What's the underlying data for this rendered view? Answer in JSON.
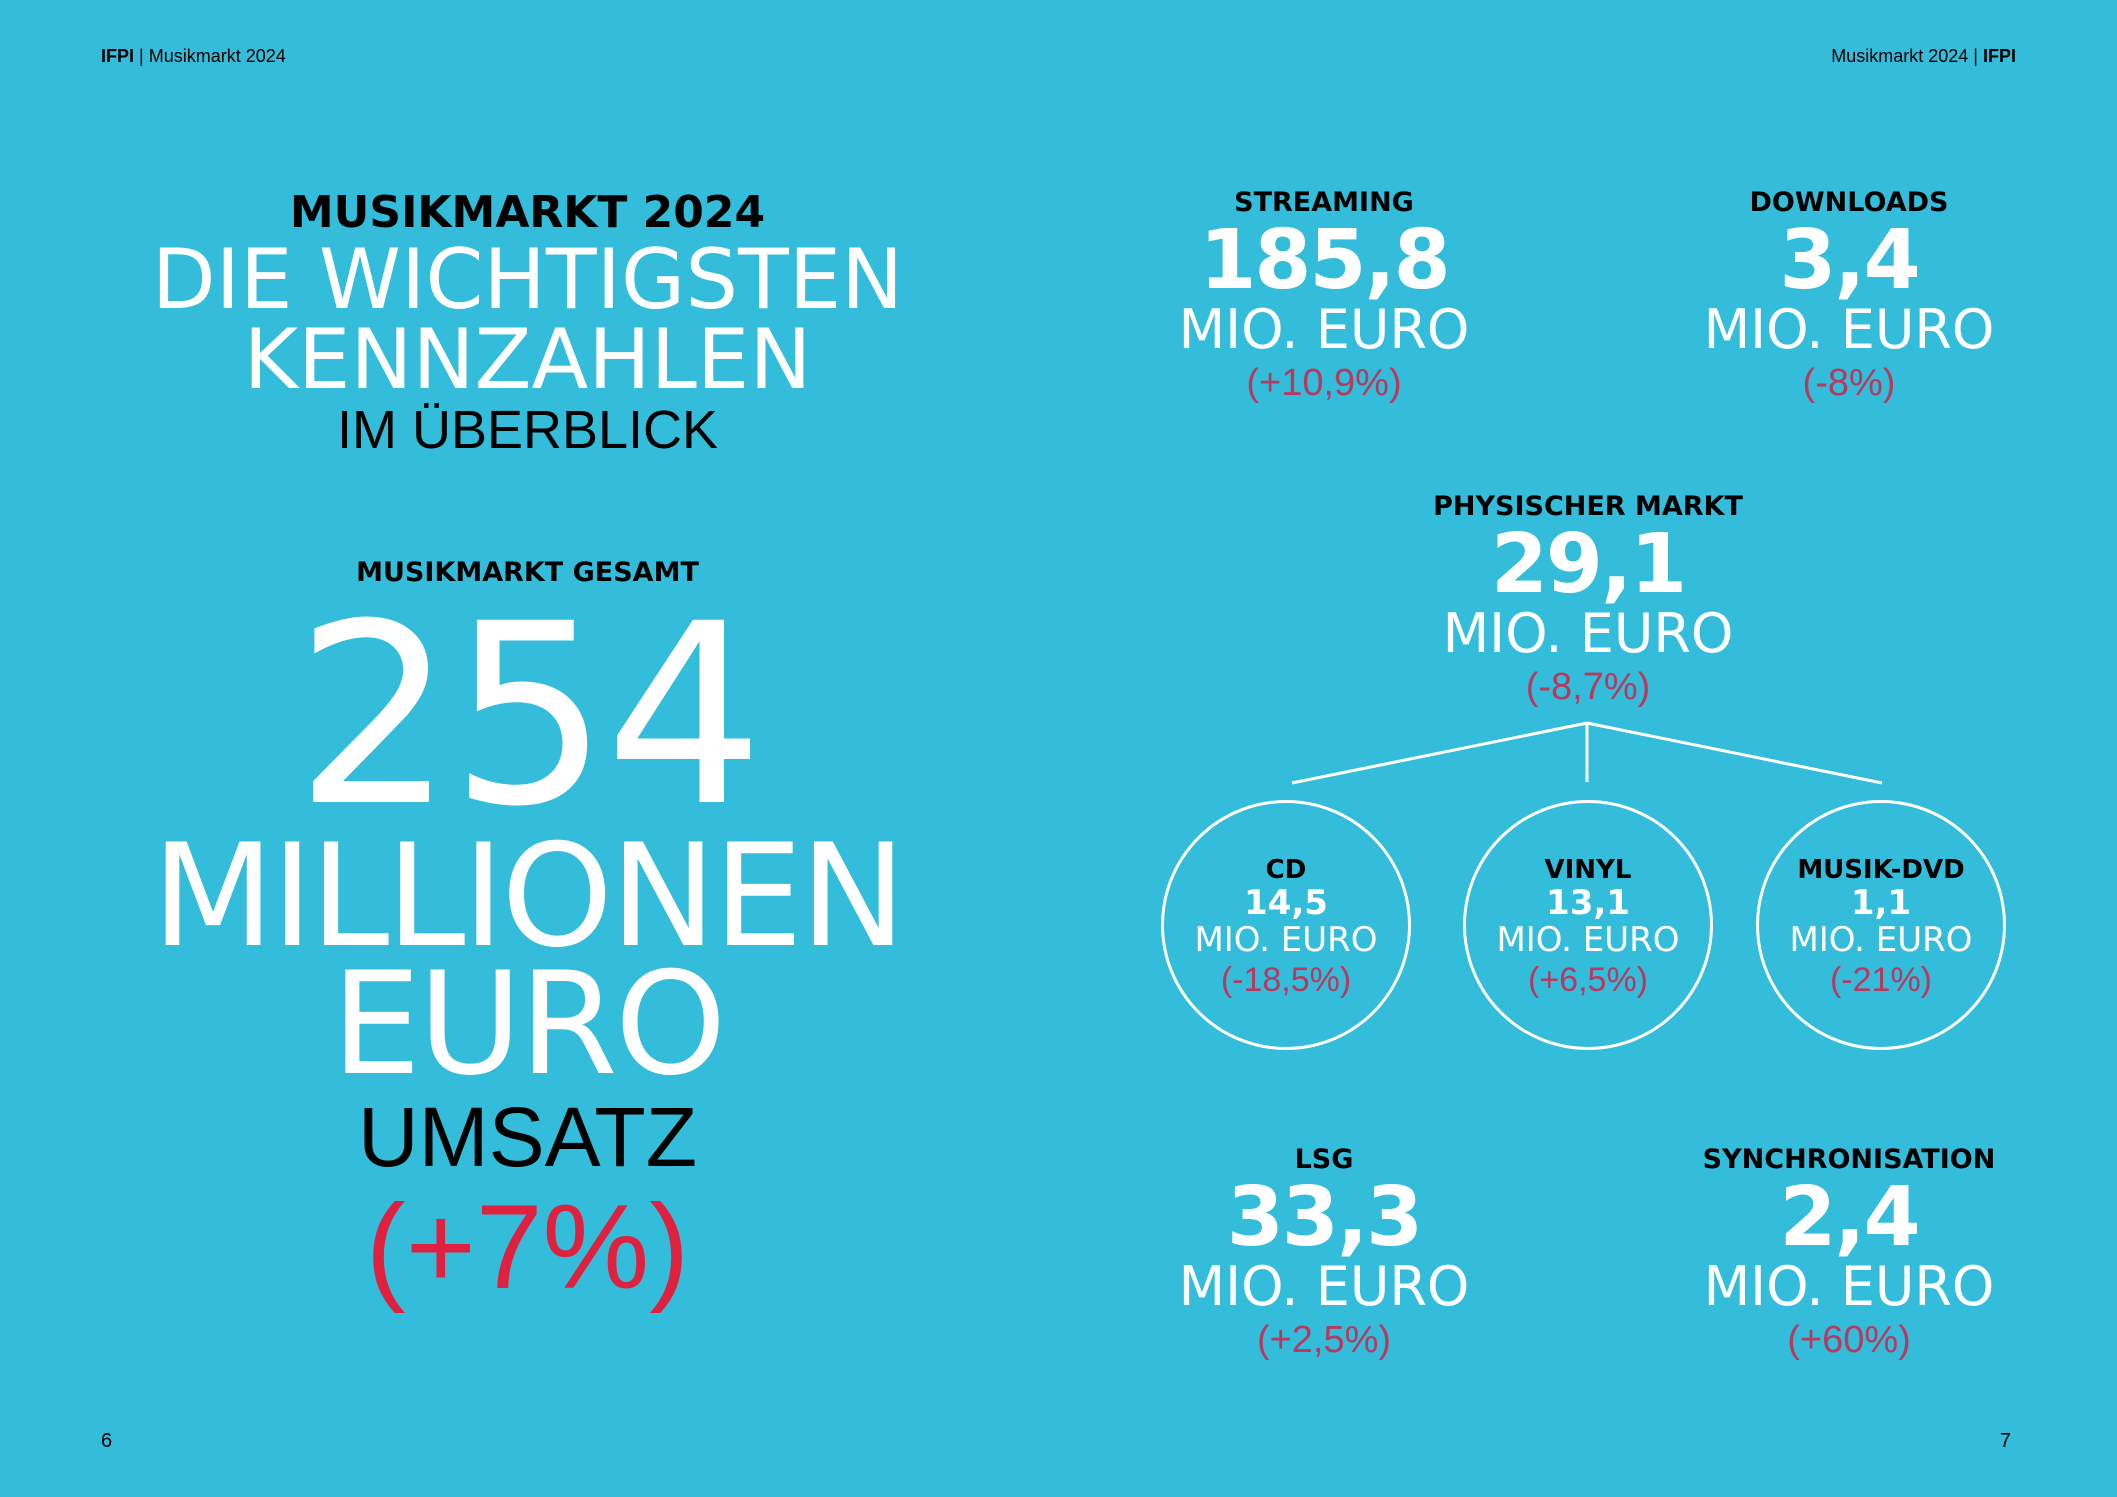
{
  "header": {
    "left_brand": "IFPI",
    "left_title": "Musikmarkt 2024",
    "right_title": "Musikmarkt 2024",
    "right_brand": "IFPI"
  },
  "title": {
    "line1": "MUSIKMARKT 2024",
    "line2": "DIE WICHTIGSTEN",
    "line3": "KENNZAHLEN",
    "line4": "IM ÜBERBLICK"
  },
  "total": {
    "label": "MUSIKMARKT GESAMT",
    "value": "254",
    "unit1": "MILLIONEN",
    "unit2": "EURO",
    "word": "UMSATZ",
    "change": "(+7%)"
  },
  "kpis": {
    "streaming": {
      "label": "STREAMING",
      "value": "185,8",
      "unit": "MIO. EURO",
      "change": "(+10,9%)"
    },
    "downloads": {
      "label": "DOWNLOADS",
      "value": "3,4",
      "unit": "MIO. EURO",
      "change": "(-8%)"
    },
    "physisch": {
      "label": "PHYSISCHER MARKT",
      "value": "29,1",
      "unit": "MIO. EURO",
      "change": "(-8,7%)"
    },
    "lsg": {
      "label": "LSG",
      "value": "33,3",
      "unit": "MIO. EURO",
      "change": "(+2,5%)"
    },
    "sync": {
      "label": "SYNCHRONISATION",
      "value": "2,4",
      "unit": "MIO. EURO",
      "change": "(+60%)"
    }
  },
  "physical_breakdown": [
    {
      "label": "CD",
      "value": "14,5",
      "unit": "MIO. EURO",
      "change": "(-18,5%)"
    },
    {
      "label": "VINYL",
      "value": "13,1",
      "unit": "MIO. EURO",
      "change": "(+6,5%)"
    },
    {
      "label": "MUSIK-DVD",
      "value": "1,1",
      "unit": "MIO. EURO",
      "change": "(-21%)"
    }
  ],
  "pages": {
    "left": "6",
    "right": "7"
  },
  "colors": {
    "background": "#33bddb",
    "accent_red": "#e0203f",
    "change_rose": "#b8395e"
  }
}
